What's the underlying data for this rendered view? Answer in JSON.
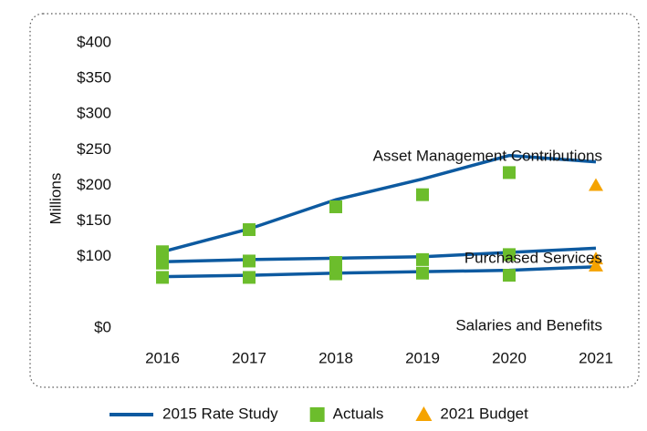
{
  "chart_data": {
    "type": "line",
    "y_label": "Millions",
    "categories": [
      "2016",
      "2017",
      "2018",
      "2019",
      "2020",
      "2021"
    ],
    "groups": [
      "Asset Management Contributions",
      "Purchased Services",
      "Salaries and Benefits"
    ],
    "series": [
      {
        "name": "2015 Rate Study",
        "color": "#0d5aa0",
        "style": "line",
        "values": [
          [
            107,
            139,
            180,
            209,
            242,
            233
          ],
          [
            93,
            96,
            98,
            100,
            106,
            112
          ],
          [
            72,
            74,
            77,
            79,
            81,
            86
          ]
        ]
      },
      {
        "name": "Actuals",
        "color": "#6cbd2c",
        "style": "square",
        "values": [
          [
            107,
            138,
            170,
            187,
            218,
            null
          ],
          [
            91,
            94,
            92,
            96,
            103,
            null
          ],
          [
            71,
            71,
            76,
            77,
            74,
            null
          ]
        ]
      },
      {
        "name": "2021 Budget",
        "color": "#f5a300",
        "style": "triangle",
        "values": [
          [
            null,
            null,
            null,
            null,
            null,
            200
          ],
          [
            null,
            null,
            null,
            null,
            null,
            97
          ],
          [
            null,
            null,
            null,
            null,
            null,
            87
          ]
        ]
      }
    ],
    "ylim": [
      0,
      400
    ],
    "yticks": [
      {
        "value": 0,
        "label": "$0"
      },
      {
        "value": 100,
        "label": "$100"
      },
      {
        "value": 150,
        "label": "$150"
      },
      {
        "value": 200,
        "label": "$200"
      },
      {
        "value": 250,
        "label": "$250"
      },
      {
        "value": 300,
        "label": "$300"
      },
      {
        "value": 350,
        "label": "$350"
      },
      {
        "value": 400,
        "label": "$400"
      }
    ],
    "grid": false
  }
}
